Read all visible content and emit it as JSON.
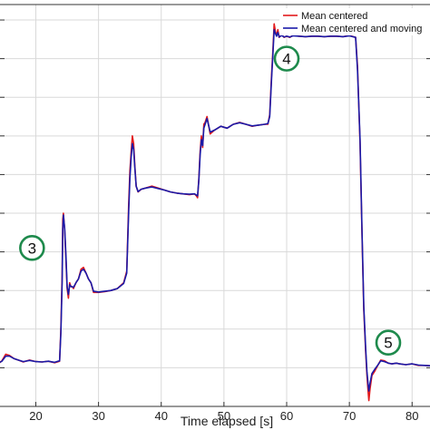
{
  "chart_data": {
    "type": "line",
    "xlabel": "Time elapsed [s]",
    "ylabel": "",
    "xlim": [
      14,
      83
    ],
    "ylim": [
      0,
      10.4
    ],
    "x_ticks": [
      20,
      30,
      40,
      50,
      60,
      70,
      80
    ],
    "grid": true,
    "legend_position": "top-right",
    "colors": {
      "mean_centered": "#e31a1c",
      "moving": "#1a1aa8",
      "marker_ring": "#1e8a4c"
    },
    "series": [
      {
        "name": "Mean centered",
        "x": [
          14,
          14.6,
          15.2,
          15.8,
          16.5,
          17.2,
          18,
          19,
          20,
          21,
          22,
          23,
          23.8,
          24.0,
          24.2,
          24.3,
          24.4,
          24.6,
          24.8,
          25.0,
          25.2,
          25.4,
          25.6,
          25.8,
          26.0,
          26.4,
          26.8,
          27.2,
          27.6,
          28.0,
          28.4,
          28.8,
          29.2,
          30,
          31,
          32,
          33,
          34,
          34.5,
          34.8,
          35.0,
          35.2,
          35.4,
          35.6,
          35.8,
          36.0,
          36.3,
          36.8,
          37.5,
          38.5,
          39.5,
          40.5,
          41.5,
          42.5,
          43.5,
          44.5,
          45.3,
          45.6,
          45.8,
          46.0,
          46.2,
          46.4,
          46.6,
          46.8,
          47.0,
          47.3,
          47.8,
          48.5,
          49.5,
          50.5,
          51.5,
          52.5,
          53.5,
          54.5,
          55.5,
          56.5,
          57.0,
          57.3,
          57.6,
          57.8,
          58.0,
          58.2,
          58.4,
          58.6,
          58.8,
          59.2,
          59.6,
          60.0,
          60.5,
          61.0,
          62,
          63,
          64,
          65,
          66,
          67,
          68,
          69,
          70,
          71.0,
          71.3,
          71.7,
          72.0,
          72.3,
          72.6,
          72.8,
          73.0,
          73.1,
          73.3,
          73.6,
          74.0,
          74.5,
          75.0,
          75.6,
          76.2,
          76.8,
          77.5,
          78,
          79,
          80,
          81,
          82,
          83
        ],
        "y": [
          1.1,
          1.18,
          1.35,
          1.32,
          1.24,
          1.2,
          1.15,
          1.2,
          1.16,
          1.15,
          1.17,
          1.13,
          1.17,
          2.0,
          3.4,
          4.85,
          5.0,
          4.55,
          3.8,
          3.05,
          2.8,
          3.2,
          3.1,
          3.1,
          3.05,
          3.2,
          3.3,
          3.55,
          3.6,
          3.45,
          3.3,
          3.2,
          2.95,
          2.95,
          2.97,
          3.0,
          3.05,
          3.2,
          3.5,
          5.2,
          6.1,
          6.6,
          7.0,
          6.8,
          6.2,
          5.7,
          5.55,
          5.62,
          5.65,
          5.7,
          5.65,
          5.6,
          5.55,
          5.52,
          5.5,
          5.48,
          5.5,
          5.45,
          5.4,
          5.9,
          6.6,
          7.0,
          6.7,
          7.3,
          7.35,
          7.5,
          7.05,
          7.15,
          7.25,
          7.2,
          7.3,
          7.35,
          7.3,
          7.25,
          7.28,
          7.3,
          7.3,
          7.55,
          8.6,
          9.2,
          9.9,
          9.7,
          9.6,
          9.75,
          9.55,
          9.62,
          9.55,
          9.58,
          9.55,
          9.6,
          9.58,
          9.57,
          9.58,
          9.58,
          9.57,
          9.58,
          9.58,
          9.57,
          9.6,
          9.55,
          8.8,
          6.8,
          4.5,
          2.5,
          1.4,
          0.8,
          0.35,
          0.15,
          0.45,
          0.8,
          0.9,
          1.05,
          1.2,
          1.18,
          1.12,
          1.1,
          1.12,
          1.1,
          1.08,
          1.1,
          1.06,
          1.06,
          1.05
        ]
      },
      {
        "name": "Mean centered and moving",
        "x": [
          14,
          14.6,
          15.2,
          15.8,
          16.5,
          17.2,
          18,
          19,
          20,
          21,
          22,
          23,
          23.8,
          24.0,
          24.2,
          24.3,
          24.4,
          24.6,
          24.8,
          25.0,
          25.2,
          25.4,
          25.6,
          25.8,
          26.0,
          26.4,
          26.8,
          27.2,
          27.6,
          28.0,
          28.4,
          28.8,
          29.2,
          30,
          31,
          32,
          33,
          34,
          34.5,
          34.8,
          35.0,
          35.2,
          35.4,
          35.6,
          35.8,
          36.0,
          36.3,
          36.8,
          37.5,
          38.5,
          39.5,
          40.5,
          41.5,
          42.5,
          43.5,
          44.5,
          45.3,
          45.6,
          45.8,
          46.0,
          46.2,
          46.4,
          46.6,
          46.8,
          47.0,
          47.3,
          47.8,
          48.5,
          49.5,
          50.5,
          51.5,
          52.5,
          53.5,
          54.5,
          55.5,
          56.5,
          57.0,
          57.3,
          57.6,
          57.8,
          58.0,
          58.2,
          58.4,
          58.6,
          58.8,
          59.2,
          59.6,
          60.0,
          60.5,
          61.0,
          62,
          63,
          64,
          65,
          66,
          67,
          68,
          69,
          70,
          71.0,
          71.3,
          71.7,
          72.0,
          72.3,
          72.6,
          72.8,
          73.0,
          73.1,
          73.3,
          73.6,
          74.0,
          74.5,
          75.0,
          75.6,
          76.2,
          76.8,
          77.5,
          78,
          79,
          80,
          81,
          82,
          83
        ],
        "y": [
          1.12,
          1.17,
          1.3,
          1.3,
          1.24,
          1.2,
          1.16,
          1.19,
          1.16,
          1.15,
          1.17,
          1.14,
          1.18,
          1.9,
          3.2,
          4.6,
          4.95,
          4.6,
          3.9,
          3.1,
          2.9,
          3.15,
          3.1,
          3.1,
          3.08,
          3.2,
          3.3,
          3.5,
          3.55,
          3.45,
          3.3,
          3.2,
          2.98,
          2.96,
          2.98,
          3.0,
          3.05,
          3.18,
          3.45,
          5.0,
          5.9,
          6.45,
          6.8,
          6.65,
          6.15,
          5.7,
          5.56,
          5.62,
          5.65,
          5.68,
          5.64,
          5.6,
          5.55,
          5.52,
          5.5,
          5.49,
          5.5,
          5.47,
          5.45,
          5.85,
          6.5,
          6.9,
          6.75,
          7.2,
          7.3,
          7.45,
          7.1,
          7.15,
          7.25,
          7.2,
          7.3,
          7.34,
          7.3,
          7.26,
          7.28,
          7.3,
          7.32,
          7.5,
          8.5,
          9.1,
          9.75,
          9.65,
          9.58,
          9.68,
          9.56,
          9.6,
          9.56,
          9.58,
          9.56,
          9.59,
          9.58,
          9.57,
          9.58,
          9.58,
          9.57,
          9.58,
          9.58,
          9.57,
          9.59,
          9.55,
          8.7,
          6.9,
          4.6,
          2.6,
          1.5,
          0.9,
          0.55,
          0.4,
          0.6,
          0.85,
          0.95,
          1.06,
          1.18,
          1.16,
          1.12,
          1.1,
          1.12,
          1.1,
          1.08,
          1.1,
          1.07,
          1.06,
          1.05
        ]
      }
    ],
    "annotations": [
      {
        "label": "3",
        "x": 19.4,
        "y": 4.1
      },
      {
        "label": "4",
        "x": 60.0,
        "y": 9.0
      },
      {
        "label": "5",
        "x": 76.2,
        "y": 1.65
      }
    ]
  }
}
